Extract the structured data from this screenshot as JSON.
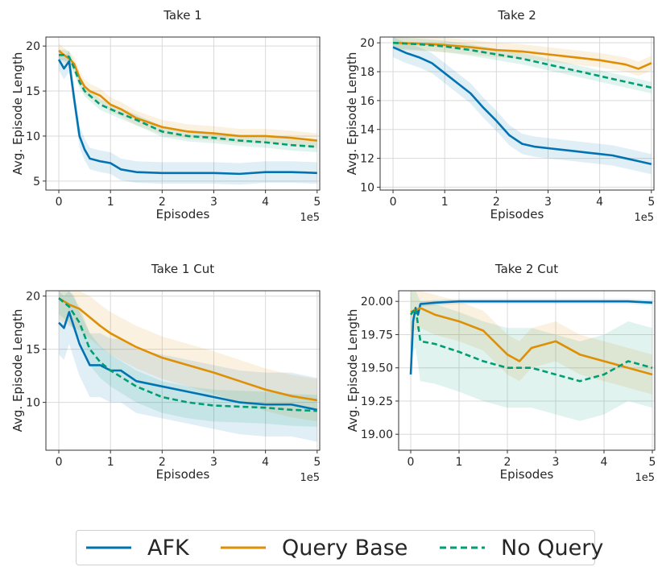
{
  "chart_data": [
    {
      "type": "line",
      "title": "Take 1",
      "xlabel": "Episodes",
      "ylabel": "Avg. Episode Length",
      "x_multiplier_label": "1e5",
      "xlim": [
        -0.25,
        5.05
      ],
      "ylim": [
        4,
        21
      ],
      "xticks": [
        0,
        1,
        2,
        3,
        4,
        5
      ],
      "xtick_labels": [
        "0",
        "1",
        "2",
        "3",
        "4",
        "5"
      ],
      "yticks": [
        5,
        10,
        15,
        20
      ],
      "ytick_labels": [
        "5",
        "10",
        "15",
        "20"
      ],
      "grid": true,
      "series": [
        {
          "name": "AFK",
          "x": [
            0,
            0.1,
            0.2,
            0.3,
            0.4,
            0.5,
            0.6,
            0.8,
            1,
            1.2,
            1.5,
            2,
            2.5,
            3,
            3.5,
            4,
            4.5,
            5
          ],
          "y": [
            18.5,
            17.5,
            18.3,
            14,
            10,
            8.5,
            7.5,
            7.2,
            7,
            6.3,
            6,
            5.9,
            5.9,
            5.9,
            5.8,
            6,
            6,
            5.9
          ],
          "band": 1.2
        },
        {
          "name": "Query Base",
          "x": [
            0,
            0.1,
            0.2,
            0.3,
            0.4,
            0.5,
            0.6,
            0.8,
            1,
            1.2,
            1.5,
            2,
            2.5,
            3,
            3.5,
            4,
            4.5,
            5
          ],
          "y": [
            19.5,
            19,
            18.6,
            18,
            16.5,
            15.5,
            15,
            14.5,
            13.5,
            13,
            12,
            11,
            10.5,
            10.3,
            10,
            10,
            9.8,
            9.5
          ],
          "band": 0.8
        },
        {
          "name": "No Query",
          "x": [
            0,
            0.1,
            0.2,
            0.3,
            0.4,
            0.5,
            0.6,
            0.8,
            1,
            1.2,
            1.5,
            2,
            2.5,
            3,
            3.5,
            4,
            4.5,
            5
          ],
          "y": [
            19,
            19,
            18.8,
            17.5,
            16,
            15,
            14.5,
            13.5,
            13,
            12.5,
            11.8,
            10.5,
            10,
            9.8,
            9.5,
            9.3,
            9,
            8.8
          ],
          "band": 0.6
        }
      ]
    },
    {
      "type": "line",
      "title": "Take 2",
      "xlabel": "Episodes",
      "ylabel": "Avg. Episode Length",
      "x_multiplier_label": "1e5",
      "xlim": [
        -0.25,
        5.05
      ],
      "ylim": [
        9.8,
        20.4
      ],
      "xticks": [
        0,
        1,
        2,
        3,
        4,
        5
      ],
      "xtick_labels": [
        "0",
        "1",
        "2",
        "3",
        "4",
        "5"
      ],
      "yticks": [
        10,
        12,
        14,
        16,
        18,
        20
      ],
      "ytick_labels": [
        "10",
        "12",
        "14",
        "16",
        "18",
        "20"
      ],
      "grid": true,
      "series": [
        {
          "name": "AFK",
          "x": [
            0,
            0.25,
            0.5,
            0.75,
            1,
            1.25,
            1.5,
            1.75,
            2,
            2.25,
            2.5,
            2.75,
            3,
            3.25,
            3.5,
            3.75,
            4,
            4.25,
            4.5,
            4.75,
            5
          ],
          "y": [
            19.7,
            19.3,
            19,
            18.6,
            17.9,
            17.2,
            16.5,
            15.5,
            14.6,
            13.6,
            13,
            12.8,
            12.7,
            12.6,
            12.5,
            12.4,
            12.3,
            12.2,
            12,
            11.8,
            11.6
          ],
          "band": 0.7
        },
        {
          "name": "Query Base",
          "x": [
            0,
            0.5,
            1,
            1.5,
            2,
            2.5,
            3,
            3.5,
            4,
            4.5,
            4.75,
            5
          ],
          "y": [
            20,
            19.95,
            19.85,
            19.7,
            19.5,
            19.4,
            19.2,
            19,
            18.8,
            18.5,
            18.2,
            18.6
          ],
          "band": 0.5
        },
        {
          "name": "No Query",
          "x": [
            0,
            0.5,
            1,
            1.5,
            2,
            2.5,
            3,
            3.5,
            4,
            4.5,
            5
          ],
          "y": [
            20,
            19.9,
            19.75,
            19.5,
            19.2,
            18.9,
            18.5,
            18.1,
            17.7,
            17.3,
            16.9
          ],
          "band": 0.4
        }
      ]
    },
    {
      "type": "line",
      "title": "Take 1 Cut",
      "xlabel": "Episodes",
      "ylabel": "Avg. Episode Length",
      "x_multiplier_label": "1e5",
      "xlim": [
        -0.25,
        5.05
      ],
      "ylim": [
        5.5,
        20.5
      ],
      "xticks": [
        0,
        1,
        2,
        3,
        4,
        5
      ],
      "xtick_labels": [
        "0",
        "1",
        "2",
        "3",
        "4",
        "5"
      ],
      "yticks": [
        10,
        15,
        20
      ],
      "ytick_labels": [
        "10",
        "15",
        "20"
      ],
      "grid": true,
      "series": [
        {
          "name": "AFK",
          "x": [
            0,
            0.1,
            0.2,
            0.3,
            0.4,
            0.5,
            0.6,
            0.8,
            1,
            1.2,
            1.5,
            2,
            2.5,
            3,
            3.5,
            4,
            4.5,
            5
          ],
          "y": [
            17.5,
            17,
            18.5,
            17,
            15.5,
            14.5,
            13.5,
            13.5,
            13,
            13,
            12,
            11.5,
            11,
            10.5,
            10,
            9.8,
            9.8,
            9.3
          ],
          "band": 3
        },
        {
          "name": "Query Base",
          "x": [
            0,
            0.2,
            0.4,
            0.6,
            0.8,
            1,
            1.5,
            2,
            2.5,
            3,
            3.5,
            4,
            4.5,
            5
          ],
          "y": [
            19.8,
            19.2,
            18.8,
            18,
            17.2,
            16.5,
            15.2,
            14.2,
            13.5,
            12.8,
            12,
            11.2,
            10.6,
            10.2
          ],
          "band": 2
        },
        {
          "name": "No Query",
          "x": [
            0,
            0.2,
            0.4,
            0.6,
            0.8,
            1,
            1.5,
            2,
            2.5,
            3,
            3.5,
            4,
            4.5,
            5
          ],
          "y": [
            19.8,
            19,
            17.5,
            15,
            13.8,
            13,
            11.5,
            10.5,
            10,
            9.7,
            9.6,
            9.5,
            9.3,
            9.2
          ],
          "band": 1.5
        }
      ]
    },
    {
      "type": "line",
      "title": "Take 2 Cut",
      "xlabel": "Episodes",
      "ylabel": "Avg. Episode Length",
      "x_multiplier_label": "1e5",
      "xlim": [
        -0.25,
        5.05
      ],
      "ylim": [
        18.88,
        20.08
      ],
      "xticks": [
        0,
        1,
        2,
        3,
        4,
        5
      ],
      "xtick_labels": [
        "0",
        "1",
        "2",
        "3",
        "4",
        "5"
      ],
      "yticks": [
        19.0,
        19.25,
        19.5,
        19.75,
        20.0
      ],
      "ytick_labels": [
        "19.00",
        "19.25",
        "19.50",
        "19.75",
        "20.00"
      ],
      "grid": true,
      "series": [
        {
          "name": "AFK",
          "x": [
            0,
            0.05,
            0.1,
            0.15,
            0.2,
            0.5,
            1,
            2,
            3,
            3.5,
            4,
            4.5,
            5
          ],
          "y": [
            19.45,
            19.85,
            19.95,
            19.9,
            19.98,
            19.99,
            20,
            20,
            20,
            20,
            20,
            20,
            19.99
          ],
          "band": 0.02
        },
        {
          "name": "Query Base",
          "x": [
            0,
            0.2,
            0.5,
            1,
            1.5,
            2,
            2.25,
            2.5,
            3,
            3.5,
            4,
            4.5,
            5
          ],
          "y": [
            19.92,
            19.95,
            19.9,
            19.85,
            19.78,
            19.6,
            19.55,
            19.65,
            19.7,
            19.6,
            19.55,
            19.5,
            19.45
          ],
          "band": 0.15
        },
        {
          "name": "No Query",
          "x": [
            0,
            0.1,
            0.2,
            0.5,
            1,
            1.5,
            2,
            2.5,
            3,
            3.5,
            4,
            4.5,
            5
          ],
          "y": [
            19.9,
            19.95,
            19.7,
            19.68,
            19.62,
            19.55,
            19.5,
            19.5,
            19.45,
            19.4,
            19.45,
            19.55,
            19.5
          ],
          "band": 0.3
        }
      ]
    }
  ],
  "legend": {
    "items": [
      {
        "label": "AFK",
        "color": "#0173b2",
        "dash": "solid"
      },
      {
        "label": "Query Base",
        "color": "#de8f05",
        "dash": "solid"
      },
      {
        "label": "No Query",
        "color": "#029e73",
        "dash": "dashed"
      }
    ]
  },
  "colors": {
    "AFK": "#0173b2",
    "Query Base": "#de8f05",
    "No Query": "#029e73"
  }
}
